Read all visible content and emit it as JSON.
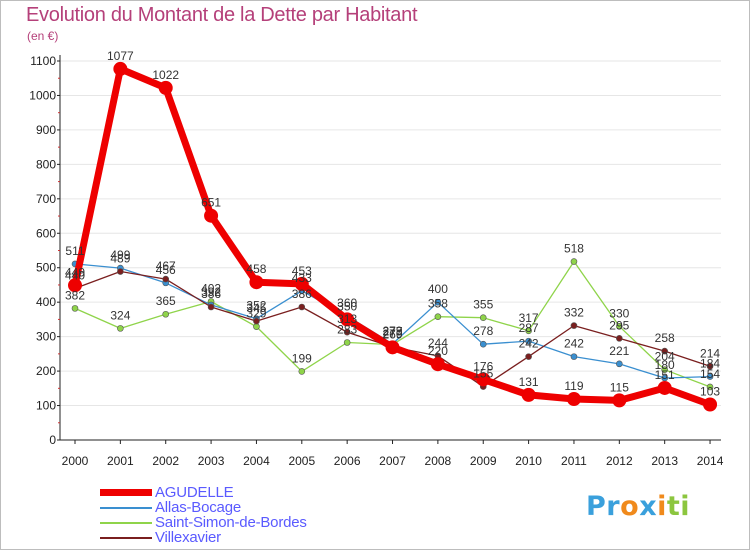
{
  "title": "Evolution du Montant de la Dette par Habitant",
  "subtitle": "(en €)",
  "logo": {
    "letters": [
      "P",
      "r",
      "o",
      "x",
      "i",
      "t",
      "i"
    ],
    "colors": [
      "#3aa0dc",
      "#3aa0dc",
      "#f08a1c",
      "#3aa0dc",
      "#f08a1c",
      "#8cc63f",
      "#8cc63f"
    ]
  },
  "chart_data": {
    "type": "line",
    "x": [
      "2000",
      "2001",
      "2002",
      "2003",
      "2004",
      "2005",
      "2006",
      "2007",
      "2008",
      "2009",
      "2010",
      "2011",
      "2012",
      "2013",
      "2014"
    ],
    "ylim": [
      0,
      1100
    ],
    "yticks": [
      0,
      100,
      200,
      300,
      400,
      500,
      600,
      700,
      800,
      900,
      1000,
      1100
    ],
    "grid": true,
    "legend_position": "bottom-left",
    "series": [
      {
        "name": "AGUDELLE",
        "color": "#ee0000",
        "width": 7,
        "marker": 7,
        "values": [
          449,
          1077,
          1022,
          651,
          458,
          453,
          350,
          269,
          220,
          176,
          131,
          119,
          115,
          151,
          103
        ]
      },
      {
        "name": "Allas-Bocage",
        "color": "#3a8fd0",
        "width": 1.3,
        "marker": 3,
        "values": [
          511,
          499,
          456,
          392,
          352,
          433,
          360,
          279,
          400,
          278,
          287,
          242,
          221,
          180,
          184
        ]
      },
      {
        "name": "Saint-Simon-de-Bordes",
        "color": "#8fd44a",
        "width": 1.3,
        "marker": 3,
        "values": [
          382,
          324,
          365,
          402,
          329,
          199,
          283,
          277,
          358,
          355,
          317,
          518,
          330,
          204,
          154
        ]
      },
      {
        "name": "Villexavier",
        "color": "#7a1f1f",
        "width": 1.3,
        "marker": 3,
        "values": [
          440,
          489,
          467,
          386,
          345,
          386,
          313,
          270,
          244,
          155,
          242,
          332,
          295,
          258,
          214
        ]
      }
    ],
    "labels": [
      {
        "series": 0,
        "index": 0,
        "text": "449"
      },
      {
        "series": 0,
        "index": 1,
        "text": "1077"
      },
      {
        "series": 0,
        "index": 2,
        "text": "1022"
      },
      {
        "series": 0,
        "index": 3,
        "text": "651"
      },
      {
        "series": 0,
        "index": 4,
        "text": "458"
      },
      {
        "series": 0,
        "index": 5,
        "text": "453"
      },
      {
        "series": 0,
        "index": 6,
        "text": "350"
      },
      {
        "series": 0,
        "index": 7,
        "text": "269"
      },
      {
        "series": 0,
        "index": 8,
        "text": "220"
      },
      {
        "series": 0,
        "index": 9,
        "text": "176"
      },
      {
        "series": 0,
        "index": 10,
        "text": "131"
      },
      {
        "series": 0,
        "index": 11,
        "text": "119"
      },
      {
        "series": 0,
        "index": 12,
        "text": "115"
      },
      {
        "series": 0,
        "index": 13,
        "text": "151"
      },
      {
        "series": 0,
        "index": 14,
        "text": "103"
      },
      {
        "series": 1,
        "index": 0,
        "text": "511"
      },
      {
        "series": 1,
        "index": 1,
        "text": "499"
      },
      {
        "series": 1,
        "index": 2,
        "text": "456"
      },
      {
        "series": 1,
        "index": 3,
        "text": "392"
      },
      {
        "series": 1,
        "index": 4,
        "text": "352"
      },
      {
        "series": 1,
        "index": 5,
        "text": "433"
      },
      {
        "series": 1,
        "index": 6,
        "text": "360"
      },
      {
        "series": 1,
        "index": 7,
        "text": "279"
      },
      {
        "series": 1,
        "index": 8,
        "text": "400"
      },
      {
        "series": 1,
        "index": 9,
        "text": "278"
      },
      {
        "series": 1,
        "index": 10,
        "text": "287"
      },
      {
        "series": 1,
        "index": 11,
        "text": "242"
      },
      {
        "series": 1,
        "index": 12,
        "text": "221"
      },
      {
        "series": 1,
        "index": 13,
        "text": "180"
      },
      {
        "series": 1,
        "index": 14,
        "text": "184"
      },
      {
        "series": 2,
        "index": 0,
        "text": "382"
      },
      {
        "series": 2,
        "index": 1,
        "text": "324"
      },
      {
        "series": 2,
        "index": 2,
        "text": "365"
      },
      {
        "series": 2,
        "index": 3,
        "text": "402"
      },
      {
        "series": 2,
        "index": 4,
        "text": "329"
      },
      {
        "series": 2,
        "index": 5,
        "text": "199"
      },
      {
        "series": 2,
        "index": 6,
        "text": "283"
      },
      {
        "series": 2,
        "index": 7,
        "text": "277"
      },
      {
        "series": 2,
        "index": 8,
        "text": "358"
      },
      {
        "series": 2,
        "index": 9,
        "text": "355"
      },
      {
        "series": 2,
        "index": 10,
        "text": "317"
      },
      {
        "series": 2,
        "index": 11,
        "text": "518"
      },
      {
        "series": 2,
        "index": 12,
        "text": "330"
      },
      {
        "series": 2,
        "index": 13,
        "text": "204"
      },
      {
        "series": 2,
        "index": 14,
        "text": "154"
      },
      {
        "series": 3,
        "index": 0,
        "text": "440"
      },
      {
        "series": 3,
        "index": 1,
        "text": "489"
      },
      {
        "series": 3,
        "index": 2,
        "text": "467"
      },
      {
        "series": 3,
        "index": 3,
        "text": "386"
      },
      {
        "series": 3,
        "index": 4,
        "text": "345"
      },
      {
        "series": 3,
        "index": 5,
        "text": "386"
      },
      {
        "series": 3,
        "index": 6,
        "text": "313"
      },
      {
        "series": 3,
        "index": 7,
        "text": "270"
      },
      {
        "series": 3,
        "index": 8,
        "text": "244"
      },
      {
        "series": 3,
        "index": 9,
        "text": "155"
      },
      {
        "series": 3,
        "index": 10,
        "text": "242"
      },
      {
        "series": 3,
        "index": 11,
        "text": "332"
      },
      {
        "series": 3,
        "index": 12,
        "text": "295"
      },
      {
        "series": 3,
        "index": 13,
        "text": "258"
      },
      {
        "series": 3,
        "index": 14,
        "text": "214"
      }
    ]
  }
}
